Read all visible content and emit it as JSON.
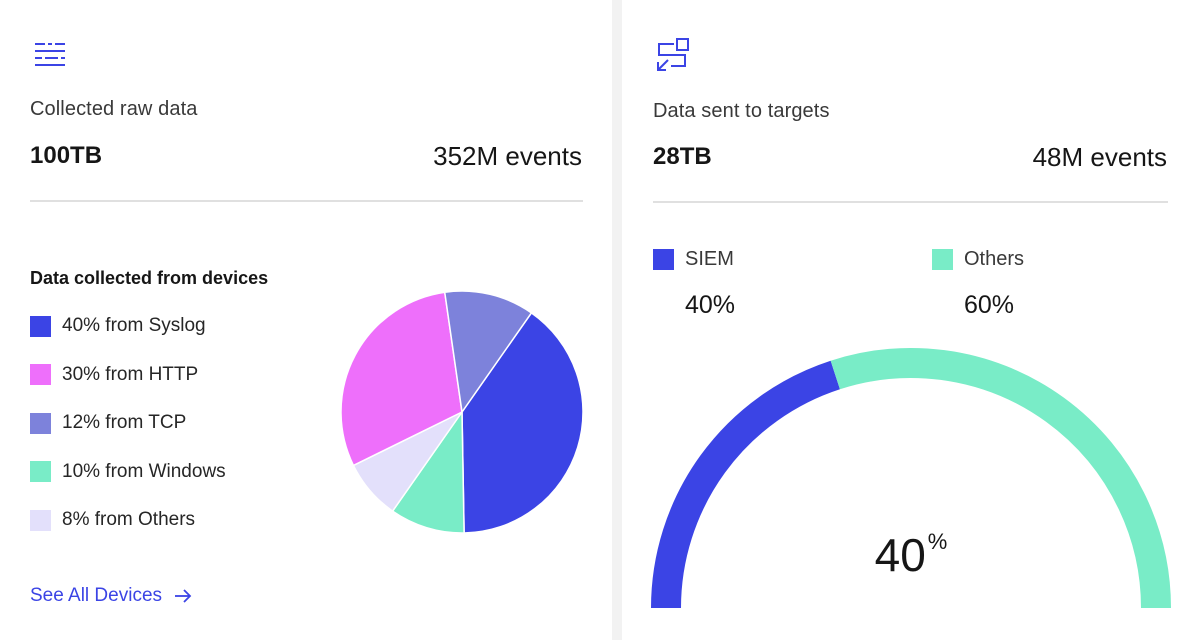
{
  "colors": {
    "syslog": "#3b44e5",
    "http": "#ee6ffb",
    "tcp": "#7d82db",
    "windows": "#79ecc7",
    "others": "#e3e0fb",
    "siem": "#3b44e5",
    "targets_others": "#79ecc7",
    "link": "#3b44e5"
  },
  "raw_data_card": {
    "icon": "data-list-icon",
    "title": "Collected raw data",
    "size": "100TB",
    "events": "352M events",
    "section_title": "Data collected from devices",
    "legend": [
      {
        "label": "40% from Syslog"
      },
      {
        "label": "30% from HTTP"
      },
      {
        "label": "12% from TCP"
      },
      {
        "label": "10% from Windows"
      },
      {
        "label": "8% from Others"
      }
    ],
    "see_all_label": "See All Devices",
    "see_all_icon": "arrow-right-icon"
  },
  "targets_card": {
    "icon": "data-transfer-icon",
    "title": "Data sent to targets",
    "size": "28TB",
    "events": "48M events",
    "legend": [
      {
        "name": "SIEM",
        "percent": "40%"
      },
      {
        "name": "Others",
        "percent": "60%"
      }
    ],
    "gauge_value": "40",
    "gauge_unit": "%"
  },
  "chart_data": [
    {
      "type": "pie",
      "title": "Data collected from devices",
      "categories": [
        "Syslog",
        "HTTP",
        "TCP",
        "Windows",
        "Others"
      ],
      "values": [
        40,
        30,
        12,
        10,
        8
      ]
    },
    {
      "type": "gauge",
      "categories": [
        "SIEM",
        "Others"
      ],
      "values": [
        40,
        60
      ],
      "center_label": "40%"
    }
  ]
}
